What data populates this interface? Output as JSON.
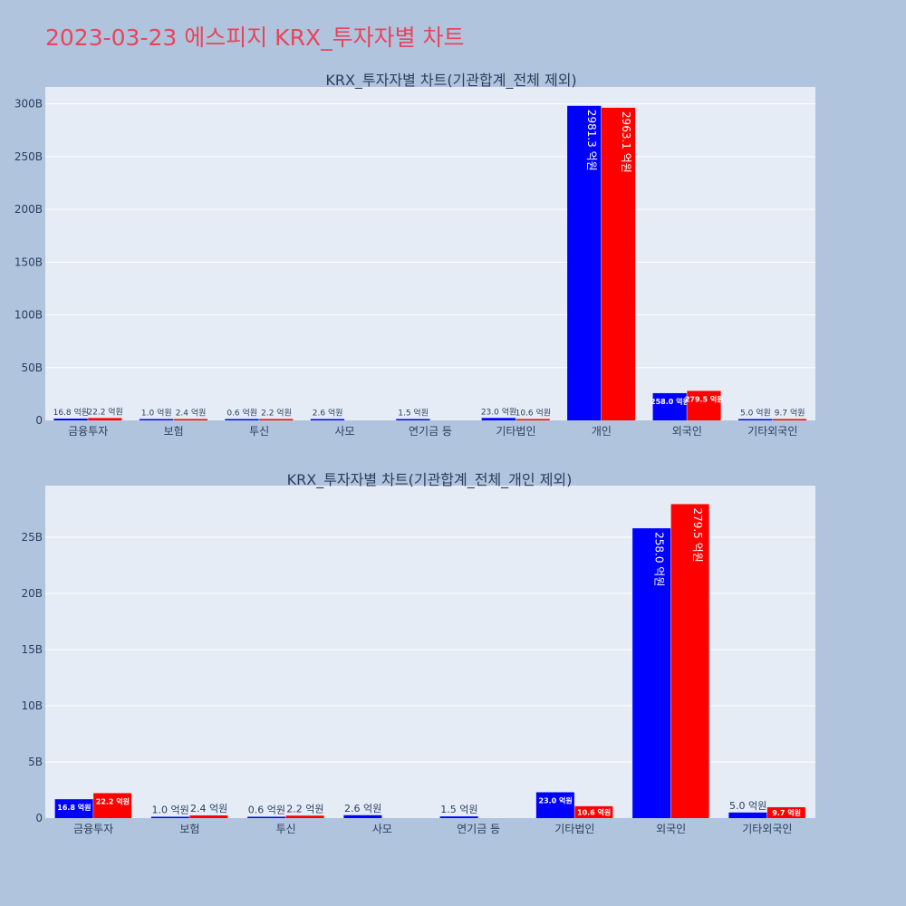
{
  "page": {
    "title": "2023-03-23 에스피지 KRX_투자자별 차트"
  },
  "colors": {
    "buy": "#0000ff",
    "sell": "#ff0000",
    "title": "#e8455a",
    "background": "#b0c4de",
    "plot_bg": "#e5ecf6"
  },
  "chart_data": [
    {
      "type": "bar",
      "title": "KRX_투자자별 차트(기관합계_전체 제외)",
      "categories": [
        "금융투자",
        "보험",
        "투신",
        "사모",
        "연기금 등",
        "기타법인",
        "개인",
        "외국인",
        "기타외국인"
      ],
      "series": [
        {
          "color": "#0000ff",
          "values": [
            16.8,
            1.0,
            0.6,
            2.6,
            1.5,
            23.0,
            2981.3,
            258.0,
            5.0
          ],
          "labels": [
            "16.8 억원",
            "1.0 억원",
            "0.6 억원",
            "2.6 억원",
            "1.5 억원",
            "23.0 억원",
            "2981.3 억원",
            "258.0 억원",
            "5.0 억원"
          ]
        },
        {
          "color": "#ff0000",
          "values": [
            22.2,
            2.4,
            2.2,
            null,
            null,
            10.6,
            2963.1,
            279.5,
            9.7
          ],
          "labels": [
            "22.2 억원",
            "2.4 억원",
            "2.2 억원",
            "",
            "",
            "10.6 억원",
            "2963.1 억원",
            "279.5 억원",
            "9.7 억원"
          ]
        }
      ],
      "yunit": "억원",
      "ylim": [
        0,
        3160
      ],
      "yticks": [
        0,
        500,
        1000,
        1500,
        2000,
        2500,
        3000
      ],
      "ytick_labels": [
        "0",
        "50B",
        "100B",
        "150B",
        "200B",
        "250B",
        "300B"
      ],
      "grid": true
    },
    {
      "type": "bar",
      "title": "KRX_투자자별 차트(기관합계_전체_개인 제외)",
      "categories": [
        "금융투자",
        "보험",
        "투신",
        "사모",
        "연기금 등",
        "기타법인",
        "외국인",
        "기타외국인"
      ],
      "series": [
        {
          "color": "#0000ff",
          "values": [
            16.8,
            1.0,
            0.6,
            2.6,
            1.5,
            23.0,
            258.0,
            5.0
          ],
          "labels": [
            "16.8 억원",
            "1.0 억원",
            "0.6 억원",
            "2.6 억원",
            "1.5 억원",
            "23.0 억원",
            "258.0 억원",
            "5.0 억원"
          ]
        },
        {
          "color": "#ff0000",
          "values": [
            22.2,
            2.4,
            2.2,
            null,
            null,
            10.6,
            279.5,
            9.7
          ],
          "labels": [
            "22.2 억원",
            "2.4 억원",
            "2.2 억원",
            "",
            "",
            "10.6 억원",
            "279.5 억원",
            "9.7 억원"
          ]
        }
      ],
      "yunit": "억원",
      "ylim": [
        0,
        296
      ],
      "yticks": [
        0,
        50,
        100,
        150,
        200,
        250
      ],
      "ytick_labels": [
        "0",
        "5B",
        "10B",
        "15B",
        "20B",
        "25B"
      ],
      "grid": true
    }
  ]
}
